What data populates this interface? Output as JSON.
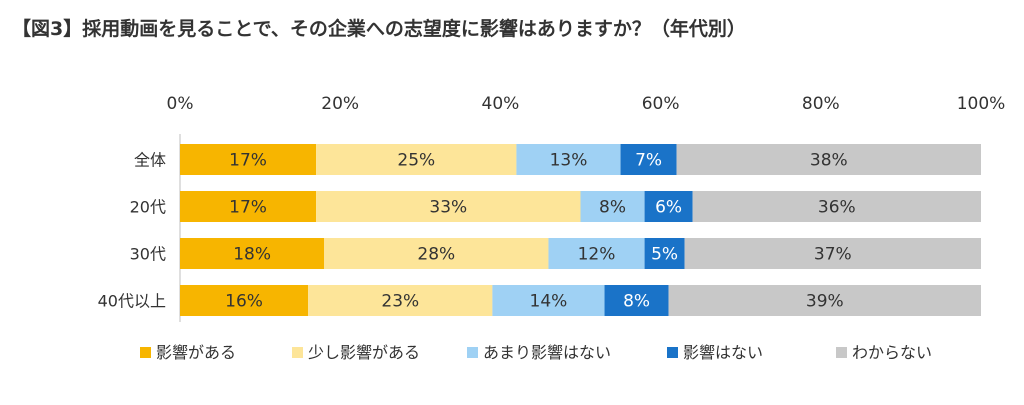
{
  "title": "【図3】採用動画を見ることで、その企業への志望度に影響はありますか？（年代別）",
  "colors": {
    "affects": "#f7b500",
    "slightly_affects": "#fde599",
    "not_much": "#9fd1f4",
    "no_effect": "#1a73c8",
    "dont_know": "#c8c8c8"
  },
  "chart_data": {
    "type": "bar",
    "orientation": "horizontal",
    "stacked": true,
    "normalized": true,
    "title": "【図3】採用動画を見ることで、その企業への志望度に影響はありますか？（年代別）",
    "xlim": [
      0,
      100
    ],
    "x_ticks": [
      "0%",
      "20%",
      "40%",
      "60%",
      "80%",
      "100%"
    ],
    "categories": [
      "全体",
      "20代",
      "30代",
      "40代以上"
    ],
    "series": [
      {
        "name": "影響がある",
        "values": [
          17,
          17,
          18,
          16
        ],
        "color": "#f7b500"
      },
      {
        "name": "少し影響がある",
        "values": [
          25,
          33,
          28,
          23
        ],
        "color": "#fde599"
      },
      {
        "name": "あまり影響はない",
        "values": [
          13,
          8,
          12,
          14
        ],
        "color": "#9fd1f4"
      },
      {
        "name": "影響はない",
        "values": [
          7,
          6,
          5,
          8
        ],
        "color": "#1a73c8"
      },
      {
        "name": "わからない",
        "values": [
          38,
          36,
          37,
          39
        ],
        "color": "#c8c8c8"
      }
    ],
    "legend_position": "bottom",
    "grid": false
  }
}
